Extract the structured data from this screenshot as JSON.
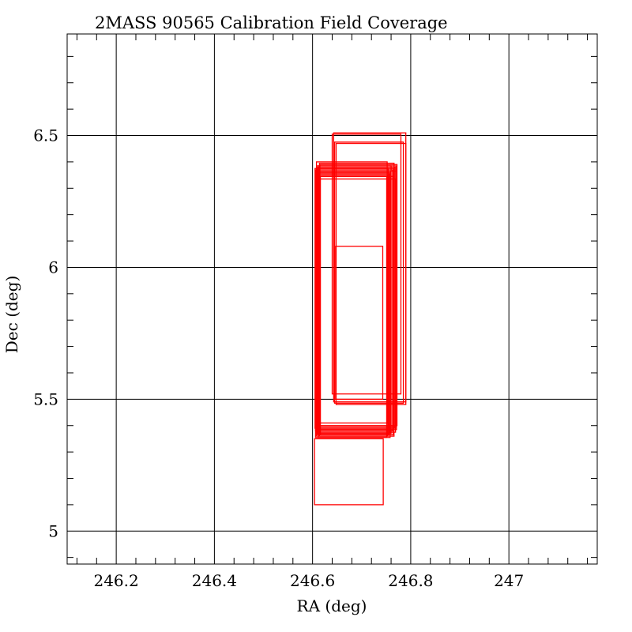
{
  "chart_data": {
    "type": "line",
    "title": "2MASS 90565 Calibration Field Coverage",
    "xlabel": "RA (deg)",
    "ylabel": "Dec (deg)",
    "xlim": [
      246.1,
      247.18
    ],
    "ylim": [
      4.875,
      6.885
    ],
    "x_ticks": [
      246.2,
      246.4,
      246.6,
      246.8,
      247.0
    ],
    "x_tick_labels": [
      "246.2",
      "246.4",
      "246.6",
      "246.8",
      "247"
    ],
    "y_ticks": [
      5.0,
      5.5,
      6.0,
      6.5
    ],
    "y_tick_labels": [
      "5",
      "5.5",
      "6",
      "6.5"
    ],
    "grid": true,
    "colors": {
      "series": "#ff0000",
      "axes": "#000000",
      "background": "#ffffff"
    },
    "series": [
      {
        "rectangles": [
          {
            "x0": 246.606,
            "x1": 246.751,
            "y0": 5.355,
            "y1": 6.345
          },
          {
            "x0": 246.608,
            "x1": 246.753,
            "y0": 5.36,
            "y1": 6.35
          },
          {
            "x0": 246.61,
            "x1": 246.755,
            "y0": 5.365,
            "y1": 6.355
          },
          {
            "x0": 246.612,
            "x1": 246.757,
            "y0": 5.37,
            "y1": 6.36
          },
          {
            "x0": 246.614,
            "x1": 246.759,
            "y0": 5.375,
            "y1": 6.365
          },
          {
            "x0": 246.606,
            "x1": 246.763,
            "y0": 5.38,
            "y1": 6.37
          },
          {
            "x0": 246.609,
            "x1": 246.765,
            "y0": 5.385,
            "y1": 6.375
          },
          {
            "x0": 246.611,
            "x1": 246.768,
            "y0": 5.39,
            "y1": 6.38
          },
          {
            "x0": 246.613,
            "x1": 246.77,
            "y0": 5.395,
            "y1": 6.385
          },
          {
            "x0": 246.615,
            "x1": 246.772,
            "y0": 5.4,
            "y1": 6.39
          },
          {
            "x0": 246.608,
            "x1": 246.752,
            "y0": 5.41,
            "y1": 6.4
          },
          {
            "x0": 246.612,
            "x1": 246.758,
            "y0": 5.355,
            "y1": 6.355
          },
          {
            "x0": 246.616,
            "x1": 246.764,
            "y0": 5.365,
            "y1": 6.345
          },
          {
            "x0": 246.607,
            "x1": 246.769,
            "y0": 5.375,
            "y1": 6.335
          },
          {
            "x0": 246.61,
            "x1": 246.771,
            "y0": 5.385,
            "y1": 6.365
          },
          {
            "x0": 246.614,
            "x1": 246.766,
            "y0": 5.36,
            "y1": 6.395
          },
          {
            "x0": 246.605,
            "x1": 246.754,
            "y0": 5.39,
            "y1": 6.375
          },
          {
            "x0": 246.609,
            "x1": 246.76,
            "y0": 5.37,
            "y1": 6.385
          },
          {
            "x0": 246.64,
            "x1": 246.78,
            "y0": 5.52,
            "y1": 6.505
          },
          {
            "x0": 246.645,
            "x1": 246.785,
            "y0": 5.485,
            "y1": 6.475
          },
          {
            "x0": 246.643,
            "x1": 246.79,
            "y0": 5.49,
            "y1": 6.51
          },
          {
            "x0": 246.648,
            "x1": 246.79,
            "y0": 5.48,
            "y1": 6.47
          },
          {
            "x0": 246.647,
            "x1": 246.743,
            "y0": 5.5,
            "y1": 6.08
          },
          {
            "x0": 246.604,
            "x1": 246.744,
            "y0": 5.1,
            "y1": 5.35
          }
        ]
      }
    ]
  }
}
